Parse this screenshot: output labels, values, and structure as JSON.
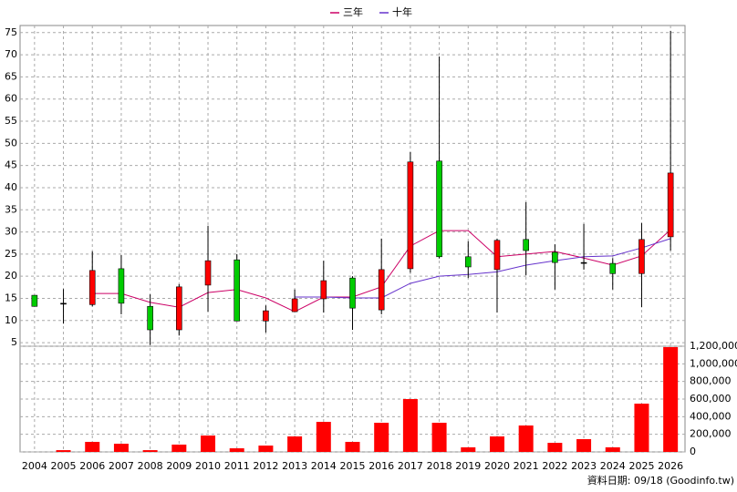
{
  "chart_data": {
    "type": "candlestick",
    "categories": [
      "2004",
      "2005",
      "2006",
      "2007",
      "2008",
      "2009",
      "2010",
      "2011",
      "2012",
      "2013",
      "2014",
      "2015",
      "2016",
      "2017",
      "2018",
      "2019",
      "2020",
      "2021",
      "2022",
      "2023",
      "2024",
      "2025",
      "2026"
    ],
    "open": [
      15.7,
      13.9,
      13.6,
      21.7,
      13.2,
      7.9,
      18.0,
      23.7,
      9.9,
      12.0,
      14.9,
      19.6,
      12.4,
      21.7,
      46.0,
      24.4,
      21.5,
      28.3,
      25.4,
      23.1,
      22.9,
      20.6,
      28.9
    ],
    "high": [
      15.7,
      17.1,
      25.6,
      24.8,
      15.9,
      18.2,
      31.4,
      25.0,
      13.4,
      17.0,
      23.5,
      20.0,
      28.5,
      48.0,
      69.6,
      27.9,
      28.5,
      36.7,
      27.2,
      31.8,
      24.1,
      32.0,
      75.4
    ],
    "low": [
      13.2,
      9.3,
      13.2,
      11.4,
      4.5,
      6.6,
      12.0,
      9.9,
      7.3,
      12.0,
      11.8,
      7.9,
      11.4,
      20.8,
      24.0,
      19.6,
      11.8,
      20.2,
      17.0,
      21.5,
      17.0,
      13.0,
      25.8
    ],
    "close": [
      13.2,
      13.9,
      21.3,
      13.9,
      7.9,
      17.6,
      23.5,
      9.9,
      12.2,
      14.9,
      19.0,
      12.8,
      21.5,
      45.8,
      24.4,
      22.1,
      28.1,
      25.8,
      23.1,
      23.1,
      20.6,
      28.3,
      43.3
    ],
    "up_color": "#ff0000",
    "down_color": "#00cc00",
    "flat_color": "#000000",
    "lines": [
      {
        "name": "三年",
        "color": "#cc0066",
        "values": [
          null,
          null,
          16.1,
          16.1,
          14.1,
          13.0,
          16.3,
          17.0,
          15.1,
          12.0,
          15.3,
          15.3,
          17.6,
          26.8,
          30.3,
          30.3,
          24.4,
          25.0,
          25.6,
          24.1,
          22.5,
          24.6,
          30.5
        ]
      },
      {
        "name": "十年",
        "color": "#6633cc",
        "values": [
          null,
          null,
          null,
          null,
          null,
          null,
          null,
          null,
          null,
          15.3,
          15.3,
          15.1,
          15.1,
          18.4,
          20.0,
          20.4,
          21.0,
          22.5,
          23.5,
          24.4,
          24.6,
          26.4,
          28.5
        ]
      }
    ],
    "ylim": [
      4.2,
      76.6
    ],
    "yticks": [
      5,
      10,
      15,
      20,
      25,
      30,
      35,
      40,
      45,
      50,
      55,
      60,
      65,
      70,
      75
    ],
    "grid": true,
    "volume": {
      "color": "#ff0000",
      "values": [
        0,
        20000,
        114000,
        93000,
        20000,
        83000,
        186000,
        41000,
        72000,
        176000,
        341000,
        114000,
        331000,
        600000,
        331000,
        52000,
        176000,
        300000,
        103000,
        145000,
        52000,
        548000,
        1190000
      ],
      "ylim": [
        0,
        1200000
      ],
      "yticks": [
        0,
        {
          "value": 200000,
          "label": "200,000"
        },
        {
          "value": 400000,
          "label": "400,000"
        },
        {
          "value": 600000,
          "label": "600,000"
        },
        {
          "value": 800000,
          "label": "800,000"
        },
        {
          "value": 1000000,
          "label": "1,000,000"
        },
        {
          "value": 1200000,
          "label": "1,200,000"
        }
      ]
    },
    "footnote": "資料日期: 09/18 (Goodinfo.tw)"
  }
}
